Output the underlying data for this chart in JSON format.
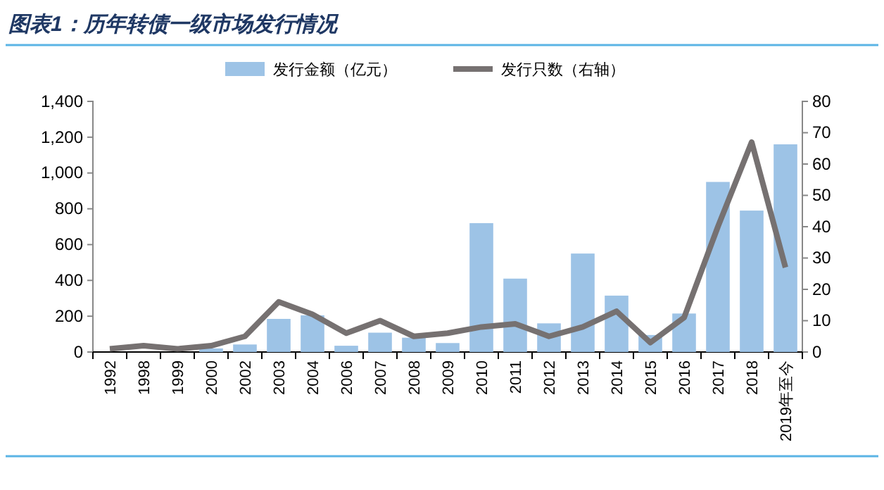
{
  "chart_data": {
    "type": "bar",
    "title": "图表1：历年转债一级市场发行情况",
    "categories": [
      "1992",
      "1998",
      "1999",
      "2000",
      "2002",
      "2003",
      "2004",
      "2006",
      "2007",
      "2008",
      "2009",
      "2010",
      "2011",
      "2012",
      "2013",
      "2014",
      "2015",
      "2016",
      "2017",
      "2018",
      "2019年至今"
    ],
    "series": [
      {
        "name": "发行金额（亿元）",
        "color": "#9dc3e6",
        "values": [
          null,
          null,
          null,
          20,
          42,
          185,
          205,
          35,
          108,
          80,
          50,
          720,
          410,
          160,
          550,
          315,
          95,
          215,
          950,
          790,
          1160
        ]
      },
      {
        "name": "发行只数（右轴）",
        "type": "line",
        "axis": "y2",
        "color": "#767171",
        "values": [
          1,
          2,
          1,
          2,
          5,
          16,
          12,
          6,
          10,
          5,
          6,
          8,
          9,
          5,
          8,
          13,
          3,
          11,
          40,
          67,
          27
        ]
      }
    ],
    "ylim": [
      0,
      1400
    ],
    "yticks": [
      0,
      {
        "value": 200,
        "label": "200"
      },
      {
        "value": 400,
        "label": "400"
      },
      {
        "value": 600,
        "label": "600"
      },
      {
        "value": 800,
        "label": "800"
      },
      {
        "value": 1000,
        "label": "1,000"
      },
      {
        "value": 1200,
        "label": "1,200"
      },
      {
        "value": 1400,
        "label": "1,400"
      }
    ],
    "y2lim": [
      0,
      80
    ],
    "y2ticks": [
      0,
      10,
      20,
      30,
      40,
      50,
      60,
      70,
      80
    ],
    "legend": "top",
    "grid": false
  }
}
